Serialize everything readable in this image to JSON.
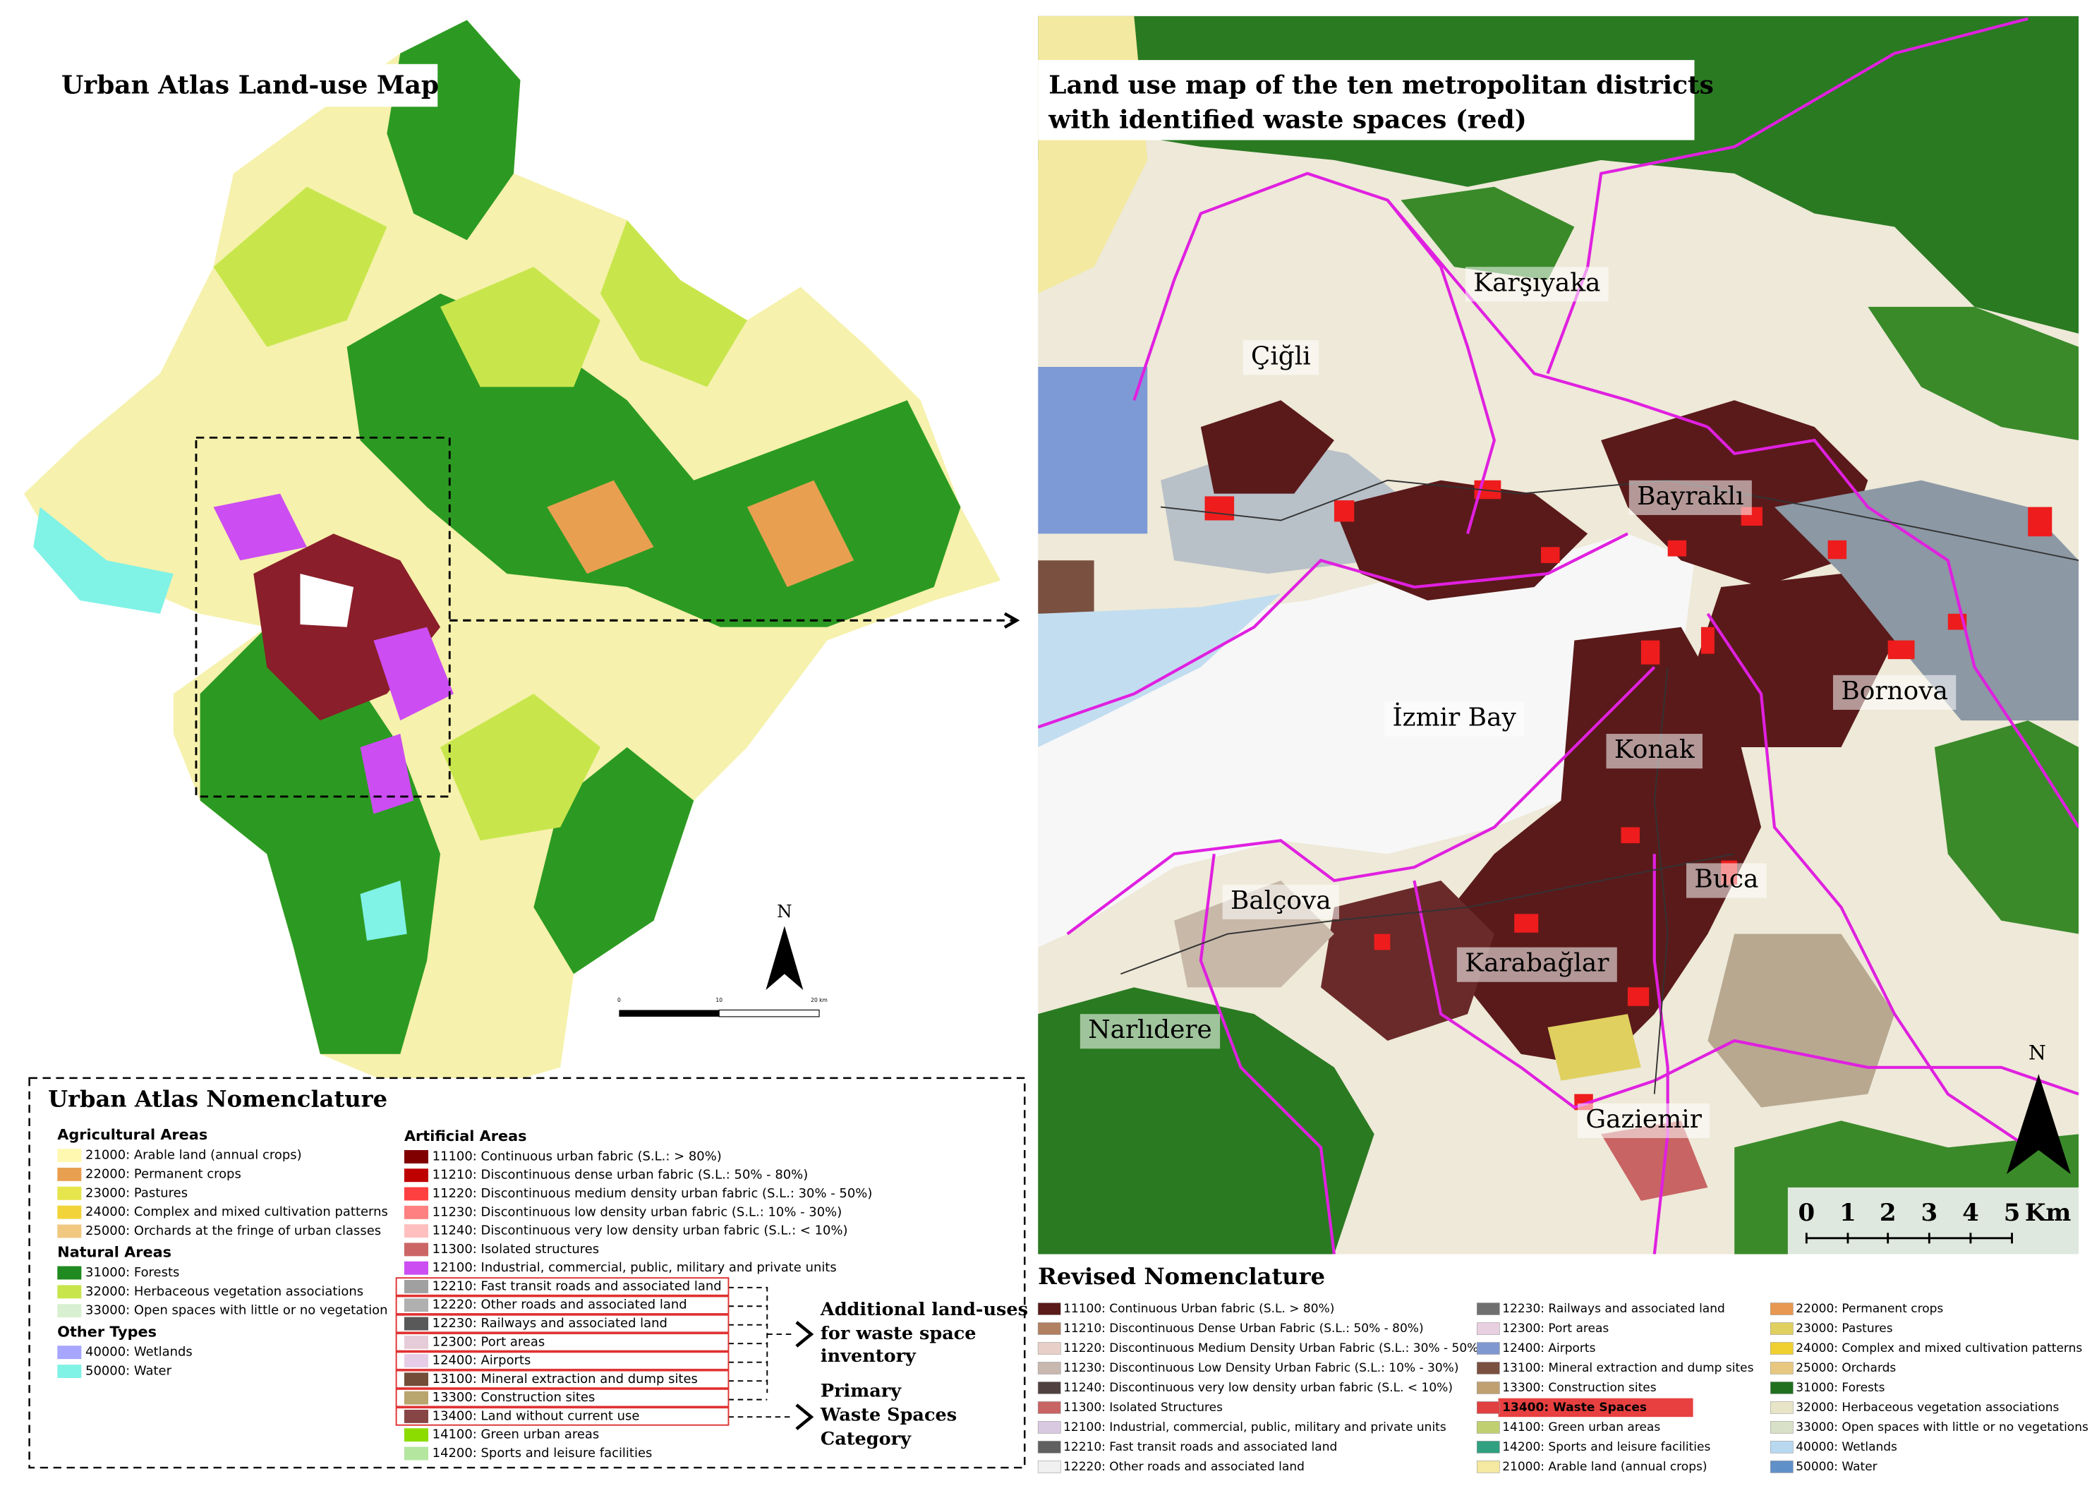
{
  "left_map": {
    "title": "Urban Atlas Land-use Map",
    "north": "N",
    "scale_labels": [
      "0",
      "10",
      "20 km"
    ]
  },
  "left_legend": {
    "title": "Urban Atlas Nomenclature",
    "groups": [
      {
        "heading": "Agricultural Areas",
        "items": [
          {
            "label": "21000: Arable land (annual crops)",
            "color": "#fff8b0"
          },
          {
            "label": "22000: Permanent crops",
            "color": "#e8a050"
          },
          {
            "label": "23000: Pastures",
            "color": "#e6e64c"
          },
          {
            "label": "24000: Complex and mixed cultivation patterns",
            "color": "#f2d43a"
          },
          {
            "label": "25000: Orchards at the fringe of urban classes",
            "color": "#f0c880"
          }
        ]
      },
      {
        "heading": "Natural Areas",
        "items": [
          {
            "label": "31000: Forests",
            "color": "#1f8a1f"
          },
          {
            "label": "32000: Herbaceous vegetation associations",
            "color": "#c8e64c"
          },
          {
            "label": "33000: Open spaces with little or no vegetation",
            "color": "#d8f0d0"
          }
        ]
      },
      {
        "heading": "Other Types",
        "items": [
          {
            "label": "40000: Wetlands",
            "color": "#a6a6ff"
          },
          {
            "label": "50000: Water",
            "color": "#80f2e6"
          }
        ]
      },
      {
        "heading": "Artificial Areas",
        "items": [
          {
            "label": "11100: Continuous urban fabric (S.L.: > 80%)",
            "color": "#800000"
          },
          {
            "label": "11210: Discontinuous dense urban fabric (S.L.: 50% - 80%)",
            "color": "#be0000"
          },
          {
            "label": "11220: Discontinuous medium density urban fabric (S.L.: 30% - 50%)",
            "color": "#ff4040"
          },
          {
            "label": "11230: Discontinuous low density urban fabric (S.L.: 10% - 30%)",
            "color": "#ff8080"
          },
          {
            "label": "11240: Discontinuous very low density urban fabric (S.L.: < 10%)",
            "color": "#ffbfbf"
          },
          {
            "label": "11300: Isolated structures",
            "color": "#cc6666"
          },
          {
            "label": "12100: Industrial, commercial, public, military and private units",
            "color": "#cc4df2"
          },
          {
            "label": "12210: Fast transit roads and associated land",
            "color": "#a0a0a0"
          },
          {
            "label": "12220: Other roads and associated land",
            "color": "#b0b0b0"
          },
          {
            "label": "12230: Railways and associated land",
            "color": "#595959"
          },
          {
            "label": "12300: Port areas",
            "color": "#e6ccd8"
          },
          {
            "label": "12400: Airports",
            "color": "#e6cce6"
          },
          {
            "label": "13100: Mineral extraction and dump sites",
            "color": "#734d37"
          },
          {
            "label": "13300: Construction sites",
            "color": "#b9a56e"
          },
          {
            "label": "13400: Land without current use",
            "color": "#874545"
          },
          {
            "label": "14100: Green urban areas",
            "color": "#8cdc00"
          },
          {
            "label": "14200: Sports and leisure facilities",
            "color": "#b4e6a0"
          }
        ]
      }
    ],
    "annotations": [
      {
        "lines": [
          "Additional land-uses",
          "for waste space",
          "inventory"
        ]
      },
      {
        "lines": [
          "Primary",
          "Waste Spaces",
          "Category"
        ]
      }
    ]
  },
  "right_map": {
    "title_lines": [
      "Land use map of the ten metropolitan districts",
      "with identified waste spaces (red)"
    ],
    "places": [
      "Çiğli",
      "Karşıyaka",
      "Bayraklı",
      "Bornova",
      "İzmir Bay",
      "Konak",
      "Buca",
      "Balçova",
      "Karabağlar",
      "Narlıdere",
      "Gaziemir"
    ],
    "north": "N",
    "scale_labels": [
      "0",
      "1",
      "2",
      "3",
      "4",
      "5",
      "Km"
    ]
  },
  "right_legend": {
    "title": "Revised Nomenclature",
    "columns": [
      [
        {
          "label": "11100: Continuous Urban fabric (S.L. > 80%)",
          "color": "#5a1a1a"
        },
        {
          "label": "11210: Discontinuous Dense Urban Fabric (S.L.: 50% - 80%)",
          "color": "#b08060"
        },
        {
          "label": "11220: Discontinuous Medium Density Urban Fabric (S.L.: 30% - 50%)",
          "color": "#e8d0c8"
        },
        {
          "label": "11230: Discontinuous Low Density Urban Fabric (S.L.: 10% - 30%)",
          "color": "#c8b8b0"
        },
        {
          "label": "11240: Discontinuous very low density urban fabric (S.L. < 10%)",
          "color": "#504040"
        },
        {
          "label": "11300: Isolated Structures",
          "color": "#c86464"
        },
        {
          "label": "12100: Industrial, commercial, public, military and private units",
          "color": "#d8c8e0"
        },
        {
          "label": "12210: Fast transit roads and associated land",
          "color": "#606060"
        },
        {
          "label": "12220: Other roads and associated land",
          "color": "#f0f0f0"
        }
      ],
      [
        {
          "label": "12230: Railways and associated land",
          "color": "#707070"
        },
        {
          "label": "12300: Port areas",
          "color": "#e8d0e0"
        },
        {
          "label": "12400: Airports",
          "color": "#8098d0"
        },
        {
          "label": "13100: Mineral extraction and dump sites",
          "color": "#7a5040"
        },
        {
          "label": "13300: Construction sites",
          "color": "#c0a070"
        },
        {
          "label": "13400: Waste Spaces",
          "color": "#e04040",
          "highlight": true
        },
        {
          "label": "14100: Green urban areas",
          "color": "#c0d070"
        },
        {
          "label": "14200: Sports and leisure facilities",
          "color": "#30a080"
        },
        {
          "label": "21000: Arable land (annual crops)",
          "color": "#f5e8a0"
        }
      ],
      [
        {
          "label": "22000: Permanent crops",
          "color": "#e89850"
        },
        {
          "label": "23000: Pastures",
          "color": "#e0d060"
        },
        {
          "label": "24000: Complex and mixed cultivation patterns",
          "color": "#f0d030"
        },
        {
          "label": "25000: Orchards",
          "color": "#e8c880"
        },
        {
          "label": "31000: Forests",
          "color": "#207020"
        },
        {
          "label": "32000: Herbaceous vegetation associations",
          "color": "#e8e4c8"
        },
        {
          "label": "33000: Open spaces with little or no vegetations",
          "color": "#d8e0c8"
        },
        {
          "label": "40000: Wetlands",
          "color": "#b8d8f0"
        },
        {
          "label": "50000: Water",
          "color": "#6090c8"
        }
      ]
    ]
  }
}
